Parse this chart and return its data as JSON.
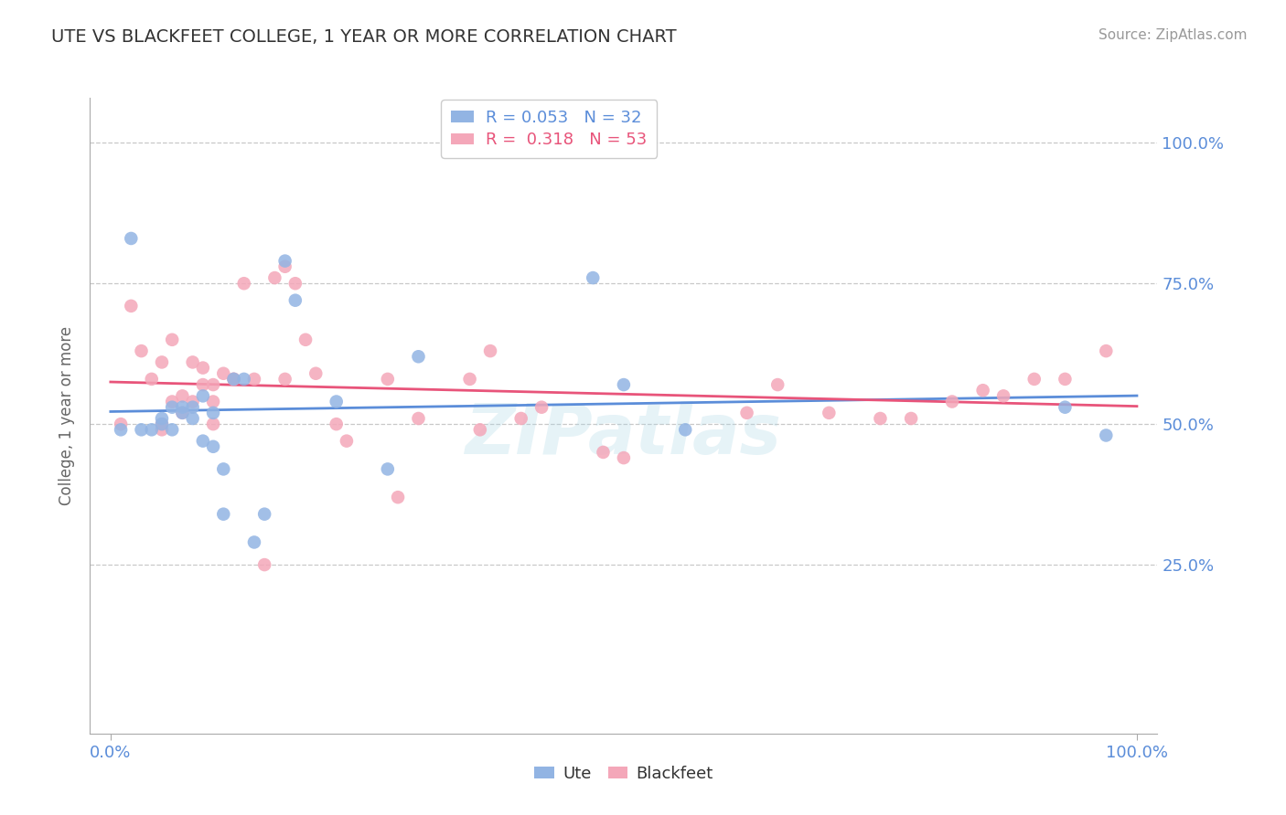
{
  "title": "UTE VS BLACKFEET COLLEGE, 1 YEAR OR MORE CORRELATION CHART",
  "source": "Source: ZipAtlas.com",
  "ylabel": "College, 1 year or more",
  "xlim": [
    -0.02,
    1.02
  ],
  "ylim": [
    -0.05,
    1.08
  ],
  "ytick_positions": [
    0.25,
    0.5,
    0.75,
    1.0
  ],
  "ytick_labels": [
    "25.0%",
    "50.0%",
    "75.0%",
    "100.0%"
  ],
  "xtick_positions": [
    0.0,
    1.0
  ],
  "xtick_labels": [
    "0.0%",
    "100.0%"
  ],
  "legend_r1": "R = 0.053   N = 32",
  "legend_r2": "R =  0.318   N = 53",
  "ute_color": "#92b4e3",
  "blackfeet_color": "#f4a7b9",
  "line_ute_color": "#5b8dd9",
  "line_blackfeet_color": "#e8547a",
  "background_color": "#ffffff",
  "watermark": "ZIPatlas",
  "grid_color": "#c8c8c8",
  "tick_color": "#5b8dd9",
  "ute_x": [
    0.01,
    0.02,
    0.03,
    0.04,
    0.05,
    0.05,
    0.06,
    0.06,
    0.07,
    0.07,
    0.08,
    0.08,
    0.09,
    0.09,
    0.1,
    0.1,
    0.11,
    0.11,
    0.12,
    0.13,
    0.14,
    0.15,
    0.17,
    0.18,
    0.22,
    0.27,
    0.3,
    0.47,
    0.5,
    0.56,
    0.93,
    0.97
  ],
  "ute_y": [
    0.49,
    0.83,
    0.49,
    0.49,
    0.5,
    0.51,
    0.53,
    0.49,
    0.52,
    0.53,
    0.51,
    0.53,
    0.55,
    0.47,
    0.52,
    0.46,
    0.34,
    0.42,
    0.58,
    0.58,
    0.29,
    0.34,
    0.79,
    0.72,
    0.54,
    0.42,
    0.62,
    0.76,
    0.57,
    0.49,
    0.53,
    0.48
  ],
  "blackfeet_x": [
    0.01,
    0.02,
    0.03,
    0.04,
    0.05,
    0.05,
    0.05,
    0.06,
    0.06,
    0.07,
    0.07,
    0.08,
    0.08,
    0.09,
    0.09,
    0.1,
    0.1,
    0.1,
    0.11,
    0.12,
    0.12,
    0.13,
    0.14,
    0.15,
    0.16,
    0.17,
    0.17,
    0.18,
    0.19,
    0.2,
    0.22,
    0.23,
    0.27,
    0.28,
    0.3,
    0.35,
    0.36,
    0.37,
    0.4,
    0.42,
    0.48,
    0.5,
    0.62,
    0.65,
    0.7,
    0.75,
    0.78,
    0.82,
    0.85,
    0.87,
    0.9,
    0.93,
    0.97
  ],
  "blackfeet_y": [
    0.5,
    0.71,
    0.63,
    0.58,
    0.49,
    0.5,
    0.61,
    0.54,
    0.65,
    0.52,
    0.55,
    0.54,
    0.61,
    0.57,
    0.6,
    0.54,
    0.57,
    0.5,
    0.59,
    0.58,
    0.58,
    0.75,
    0.58,
    0.25,
    0.76,
    0.78,
    0.58,
    0.75,
    0.65,
    0.59,
    0.5,
    0.47,
    0.58,
    0.37,
    0.51,
    0.58,
    0.49,
    0.63,
    0.51,
    0.53,
    0.45,
    0.44,
    0.52,
    0.57,
    0.52,
    0.51,
    0.51,
    0.54,
    0.56,
    0.55,
    0.58,
    0.58,
    0.63
  ]
}
